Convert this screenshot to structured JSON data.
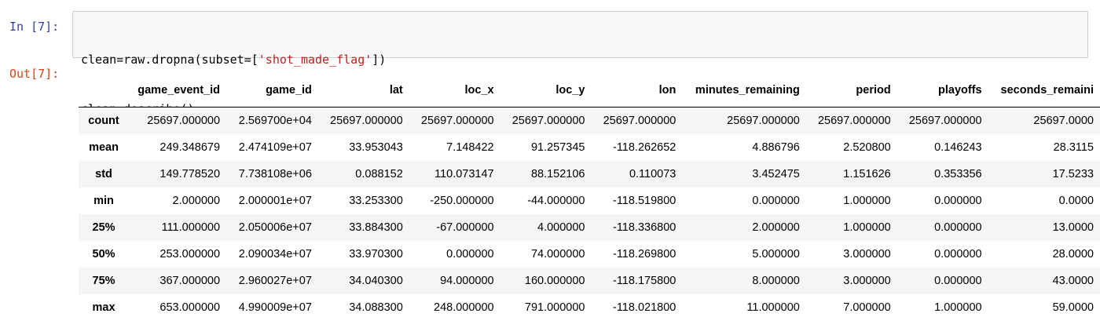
{
  "input_prompt": "In [7]:",
  "output_prompt": "Out[7]:",
  "code": {
    "line1": {
      "a": "clean=raw.dropna(subset=[",
      "b": "'shot_made_flag'",
      "c": "])"
    },
    "line2": "clean.describe()"
  },
  "table": {
    "columns": [
      "game_event_id",
      "game_id",
      "lat",
      "loc_x",
      "loc_y",
      "lon",
      "minutes_remaining",
      "period",
      "playoffs",
      "seconds_remaini"
    ],
    "rows": [
      {
        "index": "count",
        "values": [
          "25697.000000",
          "2.569700e+04",
          "25697.000000",
          "25697.000000",
          "25697.000000",
          "25697.000000",
          "25697.000000",
          "25697.000000",
          "25697.000000",
          "25697.0000"
        ]
      },
      {
        "index": "mean",
        "values": [
          "249.348679",
          "2.474109e+07",
          "33.953043",
          "7.148422",
          "91.257345",
          "-118.262652",
          "4.886796",
          "2.520800",
          "0.146243",
          "28.3115"
        ]
      },
      {
        "index": "std",
        "values": [
          "149.778520",
          "7.738108e+06",
          "0.088152",
          "110.073147",
          "88.152106",
          "0.110073",
          "3.452475",
          "1.151626",
          "0.353356",
          "17.5233"
        ]
      },
      {
        "index": "min",
        "values": [
          "2.000000",
          "2.000001e+07",
          "33.253300",
          "-250.000000",
          "-44.000000",
          "-118.519800",
          "0.000000",
          "1.000000",
          "0.000000",
          "0.0000"
        ]
      },
      {
        "index": "25%",
        "values": [
          "111.000000",
          "2.050006e+07",
          "33.884300",
          "-67.000000",
          "4.000000",
          "-118.336800",
          "2.000000",
          "1.000000",
          "0.000000",
          "13.0000"
        ]
      },
      {
        "index": "50%",
        "values": [
          "253.000000",
          "2.090034e+07",
          "33.970300",
          "0.000000",
          "74.000000",
          "-118.269800",
          "5.000000",
          "3.000000",
          "0.000000",
          "28.0000"
        ]
      },
      {
        "index": "75%",
        "values": [
          "367.000000",
          "2.960027e+07",
          "34.040300",
          "94.000000",
          "160.000000",
          "-118.175800",
          "8.000000",
          "3.000000",
          "0.000000",
          "43.0000"
        ]
      },
      {
        "index": "max",
        "values": [
          "653.000000",
          "4.990009e+07",
          "34.088300",
          "248.000000",
          "791.000000",
          "-118.021800",
          "11.000000",
          "7.000000",
          "1.000000",
          "59.0000"
        ]
      }
    ]
  }
}
